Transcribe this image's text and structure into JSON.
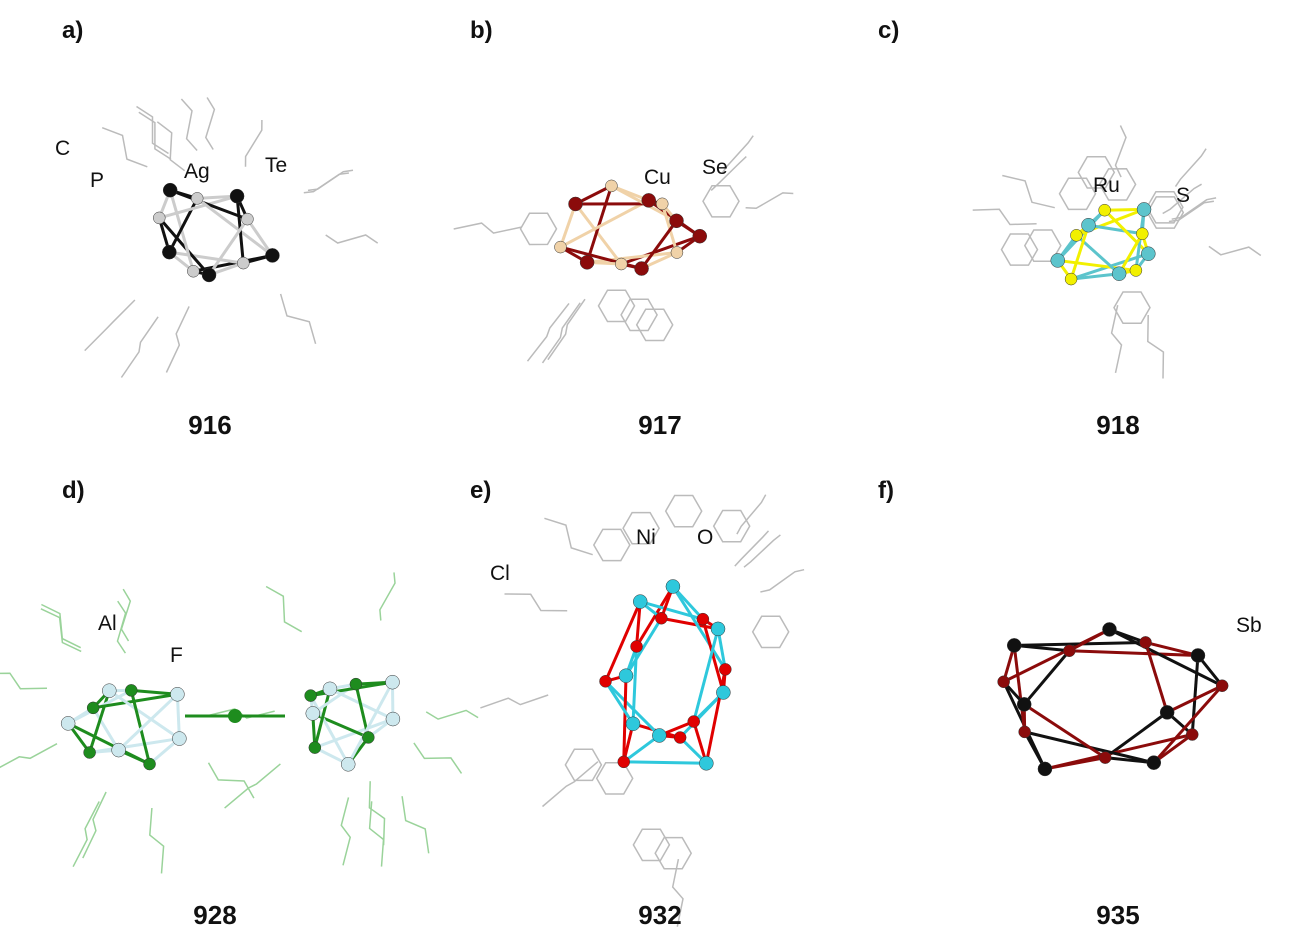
{
  "panels": [
    {
      "label": "a)",
      "compound": "916",
      "atoms": [
        "C",
        "P",
        "Ag",
        "Te"
      ]
    },
    {
      "label": "b)",
      "compound": "917",
      "atoms": [
        "Cu",
        "Se"
      ]
    },
    {
      "label": "c)",
      "compound": "918",
      "atoms": [
        "Ru",
        "S"
      ]
    },
    {
      "label": "d)",
      "compound": "928",
      "atoms": [
        "Al",
        "F"
      ]
    },
    {
      "label": "e)",
      "compound": "932",
      "atoms": [
        "Cl",
        "Ni",
        "O"
      ]
    },
    {
      "label": "f)",
      "compound": "935",
      "atoms": [
        "Sb"
      ]
    }
  ]
}
